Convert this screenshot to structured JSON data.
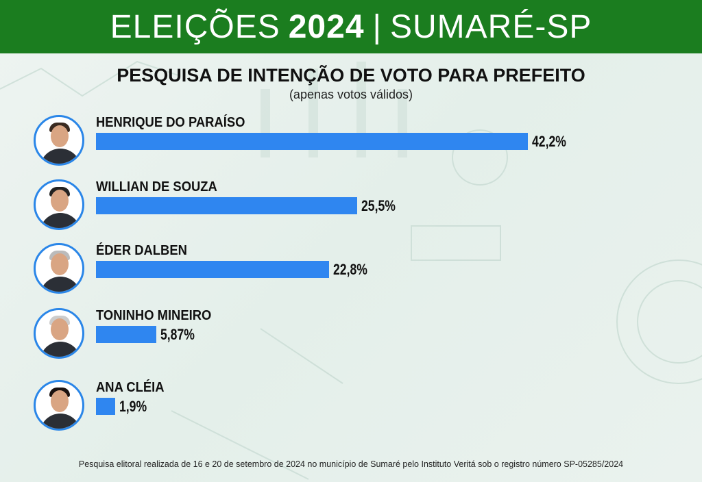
{
  "header": {
    "prefix": "ELEIÇÕES",
    "year": "2024",
    "separator": "|",
    "city": "SUMARÉ-SP"
  },
  "chart_data": {
    "type": "bar",
    "orientation": "horizontal",
    "title": "PESQUISA DE INTENÇÃO DE VOTO PARA PREFEITO",
    "subtitle": "(apenas votos válidos)",
    "categories": [
      "HENRIQUE DO PARAÍSO",
      "WILLIAN DE SOUZA",
      "ÉDER DALBEN",
      "TONINHO MINEIRO",
      "ANA CLÉIA"
    ],
    "values": [
      42.2,
      25.5,
      22.8,
      5.87,
      1.9
    ],
    "labels": [
      "42,2%",
      "25,5%",
      "22,8%",
      "5,87%",
      "1,9%"
    ],
    "xlim": [
      0,
      45
    ],
    "bar_color": "#2f86f0"
  },
  "footer": "Pesquisa elitoral realizada de 16 e 20 de setembro de 2024 no município de Sumaré pelo Instituto Veritá sob o registro número SP-05285/2024"
}
